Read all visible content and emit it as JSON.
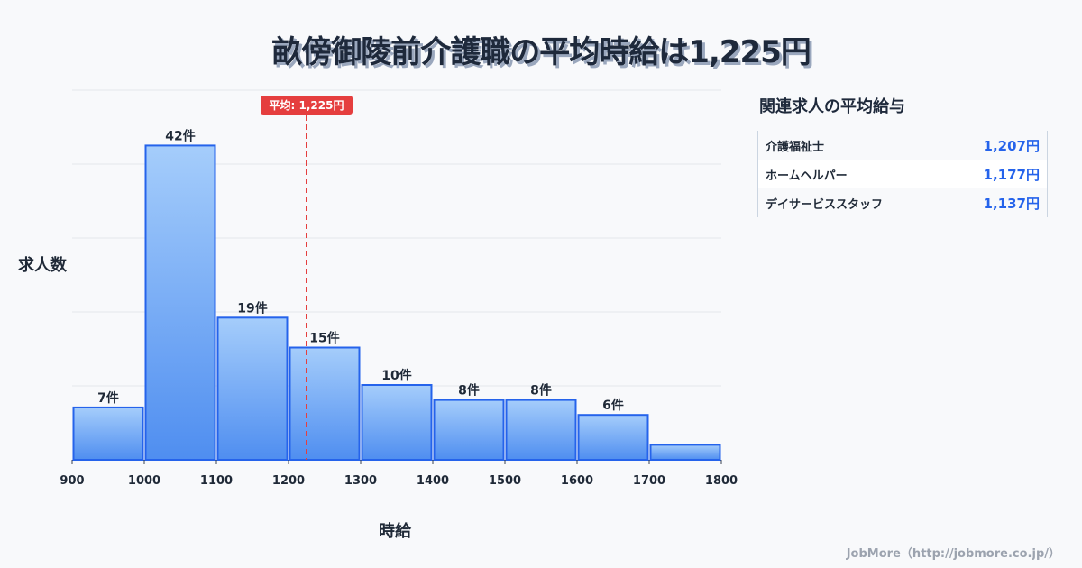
{
  "chart_data": {
    "type": "bar",
    "title": "畝傍御陵前介護職の平均時給は1,225円",
    "xlabel": "時給",
    "ylabel": "求人数",
    "bin_edges": [
      900,
      1000,
      1100,
      1200,
      1300,
      1400,
      1500,
      1600,
      1700,
      1800
    ],
    "values": [
      7,
      42,
      19,
      15,
      10,
      8,
      8,
      6,
      2
    ],
    "data_labels": [
      "7件",
      "42件",
      "19件",
      "15件",
      "10件",
      "8件",
      "8件",
      "6件",
      ""
    ],
    "ylim": [
      0,
      49.4
    ],
    "grid": true,
    "average": {
      "value": 1225,
      "label": "平均: 1,225円"
    },
    "colors": {
      "bar_top": "#a5cdfb",
      "bar_bottom": "#4f8ef0",
      "bar_stroke": "#2563eb",
      "average": "#e53e3e"
    }
  },
  "side": {
    "title": "関連求人の平均給与",
    "rows": [
      {
        "name": "介護福祉士",
        "value": "1,207円"
      },
      {
        "name": "ホームヘルパー",
        "value": "1,177円"
      },
      {
        "name": "デイサービススタッフ",
        "value": "1,137円"
      }
    ]
  },
  "credit": "JobMore（http://jobmore.co.jp/）"
}
